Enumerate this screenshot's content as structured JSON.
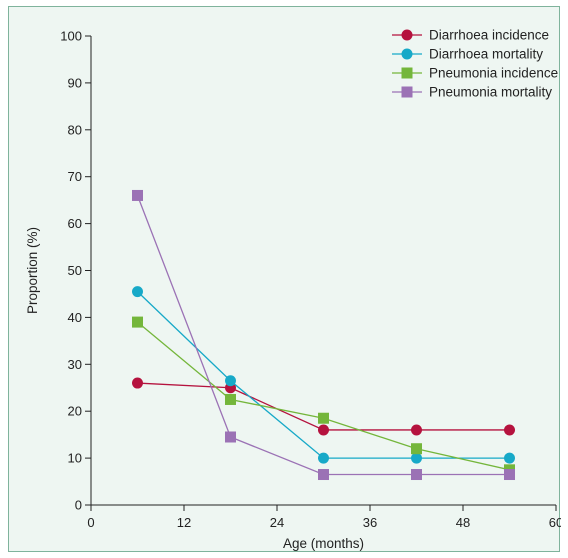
{
  "chart_data": {
    "type": "line",
    "xlabel": "Age (months)",
    "ylabel": "Proportion (%)",
    "xlim": [
      0,
      60
    ],
    "ylim": [
      0,
      100
    ],
    "xticks": [
      0,
      12,
      24,
      36,
      48,
      60
    ],
    "yticks": [
      0,
      10,
      20,
      30,
      40,
      50,
      60,
      70,
      80,
      90,
      100
    ],
    "grid": false,
    "legend_position": "top-right",
    "x": [
      6,
      18,
      30,
      42,
      54
    ],
    "series": [
      {
        "name": "Diarrhoea incidence",
        "marker": "circle",
        "color": "#b5123e",
        "values": [
          26,
          25,
          16,
          16,
          16
        ]
      },
      {
        "name": "Diarrhoea mortality",
        "marker": "circle",
        "color": "#17a9c8",
        "values": [
          45.5,
          26.5,
          10,
          10,
          10
        ]
      },
      {
        "name": "Pneumonia incidence",
        "marker": "square",
        "color": "#74b63b",
        "values": [
          39,
          22.5,
          18.5,
          12,
          7.5
        ]
      },
      {
        "name": "Pneumonia mortality",
        "marker": "square",
        "color": "#9b72b5",
        "values": [
          66,
          14.5,
          6.5,
          6.5,
          6.5
        ]
      }
    ]
  }
}
